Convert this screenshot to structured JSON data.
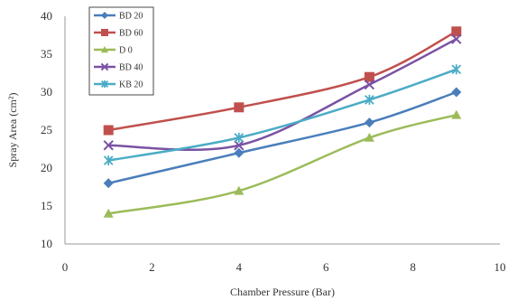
{
  "chart_data": {
    "type": "line",
    "title": "",
    "xlabel": "Chamber Pressure (Bar)",
    "ylabel": "Spray Area (cm²)",
    "xlim": [
      0,
      10
    ],
    "ylim": [
      10,
      40
    ],
    "xticks": [
      0,
      2,
      4,
      6,
      8,
      10
    ],
    "yticks": [
      10,
      15,
      20,
      25,
      30,
      35,
      40
    ],
    "grid": false,
    "legend_position": "top-left",
    "series": [
      {
        "name": "BD 20",
        "color": "#4a7ebb",
        "marker": "diamond",
        "x": [
          1,
          4,
          7,
          9
        ],
        "y": [
          18,
          22,
          26,
          30
        ]
      },
      {
        "name": "BD 60",
        "color": "#c0504d",
        "marker": "square",
        "x": [
          1,
          4,
          7,
          9
        ],
        "y": [
          25,
          28,
          32,
          38
        ]
      },
      {
        "name": "D 0",
        "color": "#9bbb59",
        "marker": "triangle",
        "x": [
          1,
          4,
          7,
          9
        ],
        "y": [
          14,
          17,
          24,
          27
        ]
      },
      {
        "name": "BD 40",
        "color": "#7a52a4",
        "marker": "x",
        "x": [
          1,
          4,
          7,
          9
        ],
        "y": [
          23,
          23,
          31,
          37
        ]
      },
      {
        "name": "KB 20",
        "color": "#4bacc6",
        "marker": "star",
        "x": [
          1,
          4,
          7,
          9
        ],
        "y": [
          21,
          24,
          29,
          33
        ]
      }
    ]
  }
}
